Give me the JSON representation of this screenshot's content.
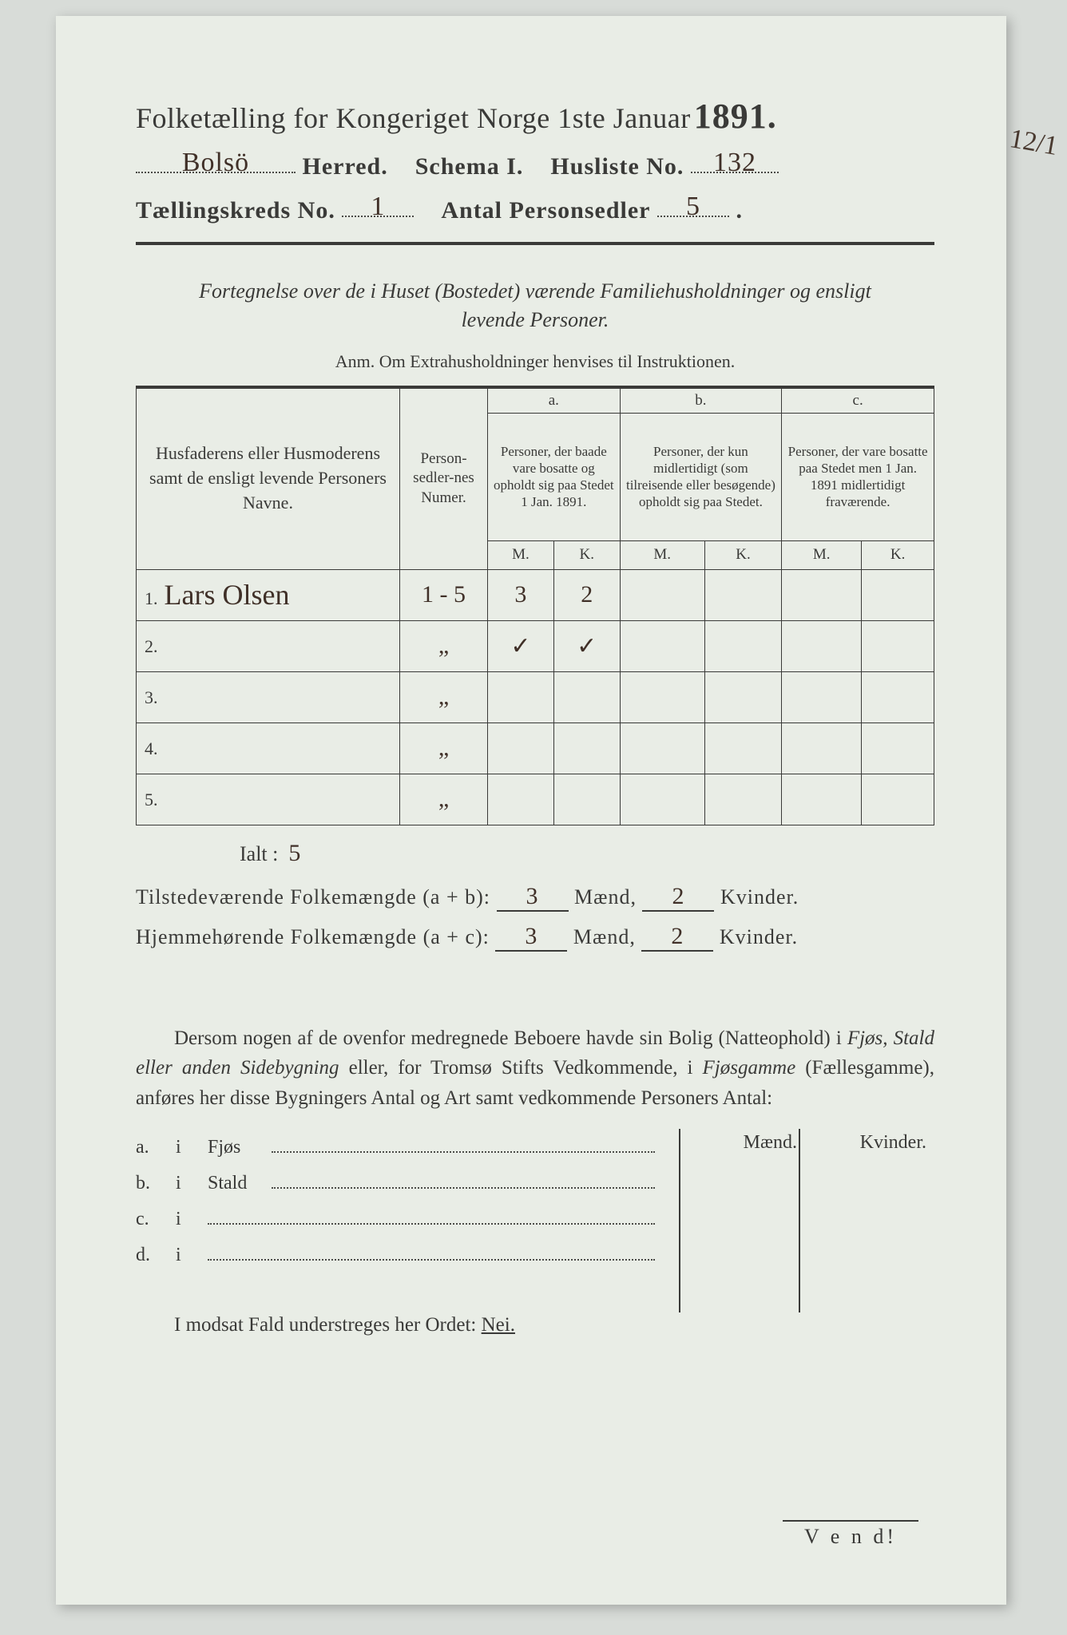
{
  "background_color": "#d8dcd8",
  "paper_color": "#e9ede6",
  "ink_color": "#3a3a38",
  "handwriting_color": "#403028",
  "title": {
    "main": "Folketælling for Kongeriget Norge 1ste Januar",
    "year": "1891."
  },
  "header": {
    "herred_value": "Bolsö",
    "herred_label": "Herred.",
    "schema_label": "Schema I.",
    "husliste_label": "Husliste No.",
    "husliste_value": "132",
    "kreds_label": "Tællingskreds No.",
    "kreds_value": "1",
    "personsedler_label": "Antal Personsedler",
    "personsedler_value": "5",
    "margin_note": "12/1"
  },
  "subtitle": {
    "line1": "Fortegnelse over de i Huset (Bostedet) værende Familiehusholdninger og ensligt",
    "line2": "levende Personer.",
    "anm": "Anm. Om Extrahusholdninger henvises til Instruktionen."
  },
  "table": {
    "columns": {
      "name": "Husfaderens eller Husmoderens samt de ensligt levende Personers Navne.",
      "numer": "Person-sedler-nes Numer.",
      "a_label": "a.",
      "a_text": "Personer, der baade vare bosatte og opholdt sig paa Stedet 1 Jan. 1891.",
      "b_label": "b.",
      "b_text": "Personer, der kun midlertidigt (som tilreisende eller besøgende) opholdt sig paa Stedet.",
      "c_label": "c.",
      "c_text": "Personer, der vare bosatte paa Stedet men 1 Jan. 1891 midlertidigt fraværende.",
      "M": "M.",
      "K": "K."
    },
    "rows": [
      {
        "n": "1.",
        "name": "Lars Olsen",
        "numer": "1 - 5",
        "aM": "3",
        "aK": "2",
        "bM": "",
        "bK": "",
        "cM": "",
        "cK": ""
      },
      {
        "n": "2.",
        "name": "",
        "numer": "„",
        "aM": "✓",
        "aK": "✓",
        "bM": "",
        "bK": "",
        "cM": "",
        "cK": ""
      },
      {
        "n": "3.",
        "name": "",
        "numer": "„",
        "aM": "",
        "aK": "",
        "bM": "",
        "bK": "",
        "cM": "",
        "cK": ""
      },
      {
        "n": "4.",
        "name": "",
        "numer": "„",
        "aM": "",
        "aK": "",
        "bM": "",
        "bK": "",
        "cM": "",
        "cK": ""
      },
      {
        "n": "5.",
        "name": "",
        "numer": "„",
        "aM": "",
        "aK": "",
        "bM": "",
        "bK": "",
        "cM": "",
        "cK": ""
      }
    ]
  },
  "totals": {
    "ialt_label": "Ialt :",
    "ialt_value": "5",
    "present_label": "Tilstedeværende Folkemængde (a + b):",
    "present_m": "3",
    "present_k": "2",
    "home_label": "Hjemmehørende Folkemængde (a + c):",
    "home_m": "3",
    "home_k": "2",
    "maend": "Mænd,",
    "kvinder": "Kvinder."
  },
  "paragraph": "Dersom nogen af de ovenfor medregnede Beboere havde sin Bolig (Natteophold) i Fjøs, Stald eller anden Sidebygning eller, for Tromsø Stifts Vedkommende, i Fjøsgamme (Fællesgamme), anføres her disse Bygningers Antal og Art samt vedkommende Personers Antal:",
  "lower": {
    "maend": "Mænd.",
    "kvinder": "Kvinder.",
    "rows": [
      {
        "lab": "a.",
        "i": "i",
        "text": "Fjøs"
      },
      {
        "lab": "b.",
        "i": "i",
        "text": "Stald"
      },
      {
        "lab": "c.",
        "i": "i",
        "text": ""
      },
      {
        "lab": "d.",
        "i": "i",
        "text": ""
      }
    ]
  },
  "modsat": {
    "text": "I modsat Fald understreges her Ordet:",
    "nei": "Nei."
  },
  "vend": "V e n d!"
}
